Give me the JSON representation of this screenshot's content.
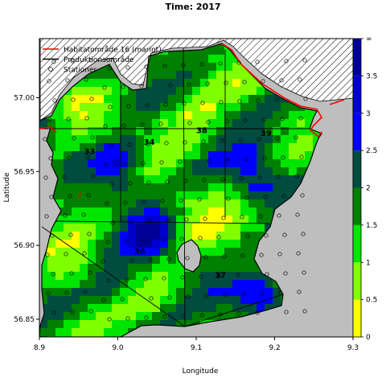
{
  "figure": {
    "title": "Time: 2017",
    "xlabel": "Longitude",
    "ylabel": "Latitude"
  },
  "axes": {
    "x_ticks": [
      "8.9",
      "9.0",
      "9.1",
      "9.2",
      "9.3"
    ],
    "y_ticks": [
      "56.85",
      "56.90",
      "56.95",
      "57.00"
    ],
    "xlim": [
      8.9,
      9.3
    ],
    "ylim": [
      56.838,
      57.04
    ]
  },
  "legend": {
    "placement": "top-left",
    "items": [
      {
        "label": "Habitatområde 16 (marint)",
        "kind": "line",
        "color": "#ff0000"
      },
      {
        "label": "Produktionsområde",
        "kind": "line",
        "color": "#000000"
      },
      {
        "label": "Stationer",
        "kind": "circle",
        "color": "#000000"
      }
    ]
  },
  "colorbar": {
    "ticks": [
      "0",
      "0.5",
      "1",
      "1.5",
      "2",
      "2.5",
      "3",
      "3.5",
      "∞"
    ],
    "bands": [
      {
        "from": 0.0,
        "to": 0.5,
        "color": "#ffff00"
      },
      {
        "from": 0.5,
        "to": 1.0,
        "color": "#80ff00"
      },
      {
        "from": 1.0,
        "to": 1.5,
        "color": "#00e600"
      },
      {
        "from": 1.5,
        "to": 2.0,
        "color": "#008000"
      },
      {
        "from": 2.0,
        "to": 2.5,
        "color": "#004d40"
      },
      {
        "from": 2.5,
        "to": 3.0,
        "color": "#0000ff"
      },
      {
        "from": 3.0,
        "to": 3.5,
        "color": "#0000cc"
      },
      {
        "from": 3.5,
        "to": 4.0,
        "color": "#000099"
      }
    ]
  },
  "areas": [
    {
      "label": "33",
      "lon": 8.964,
      "lat": 56.962
    },
    {
      "label": "34",
      "lon": 9.04,
      "lat": 56.968
    },
    {
      "label": "38",
      "lon": 9.107,
      "lat": 56.976
    },
    {
      "label": "39",
      "lon": 9.189,
      "lat": 56.974
    },
    {
      "label": "36",
      "lon": 9.028,
      "lat": 56.894
    },
    {
      "label": "37",
      "lon": 9.131,
      "lat": 56.878
    }
  ],
  "colors": {
    "land": "#bebebe",
    "coast": "#000000",
    "habitat": "#ff0000",
    "hatch": "#000000"
  }
}
